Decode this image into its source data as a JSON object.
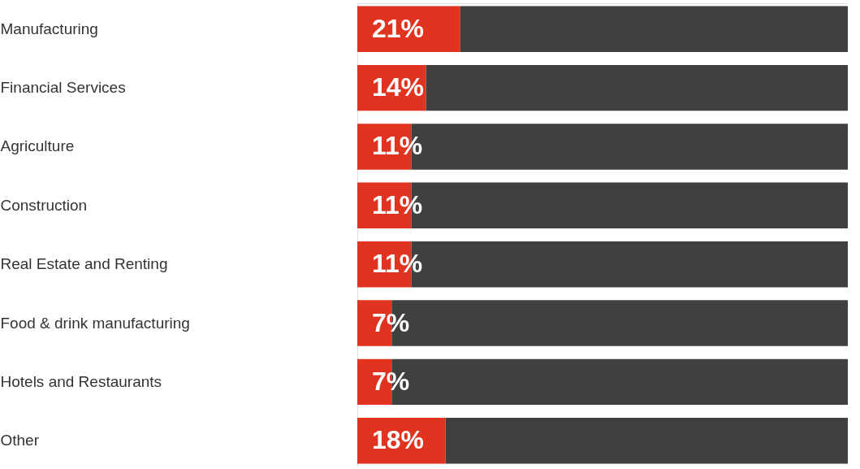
{
  "chart_data": {
    "type": "bar",
    "orientation": "horizontal",
    "stacked": true,
    "categories": [
      "Manufacturing",
      "Financial Services",
      "Agriculture",
      "Construction",
      "Real Estate and Renting",
      "Food & drink manufacturing",
      "Hotels and Restaurants",
      "Other"
    ],
    "series": [
      {
        "color": "#e03320",
        "values": [
          21,
          14,
          11,
          11,
          11,
          7,
          7,
          18
        ],
        "value_labels": [
          "21%",
          "14%",
          "11%",
          "11%",
          "11%",
          "7%",
          "7%",
          "18%"
        ]
      },
      {
        "color": "#404040",
        "values": [
          79,
          86,
          89,
          89,
          89,
          93,
          93,
          82
        ]
      }
    ],
    "xlim": [
      0,
      100
    ],
    "tick_labels": "y",
    "grid": false
  }
}
